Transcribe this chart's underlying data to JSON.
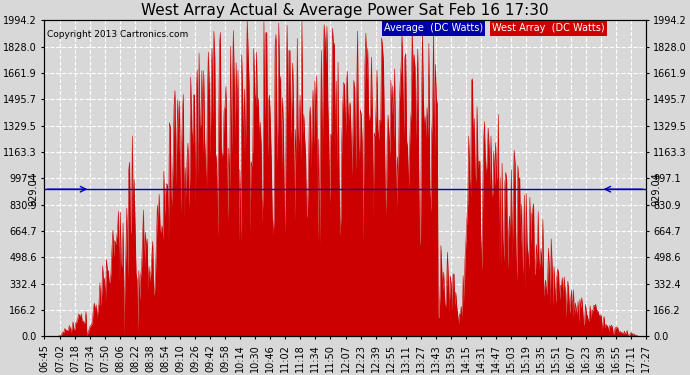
{
  "title": "West Array Actual & Average Power Sat Feb 16 17:30",
  "copyright": "Copyright 2013 Cartronics.com",
  "legend_avg": "Average  (DC Watts)",
  "legend_west": "West Array  (DC Watts)",
  "avg_line_value": 929.04,
  "avg_label": "929.04",
  "ylim": [
    0,
    1994.2
  ],
  "yticks": [
    0.0,
    166.2,
    332.4,
    498.6,
    664.7,
    830.9,
    997.1,
    1163.3,
    1329.5,
    1495.7,
    1661.9,
    1828.0,
    1994.2
  ],
  "ytick_labels": [
    "0.0",
    "166.2",
    "332.4",
    "498.6",
    "664.7",
    "830.9",
    "997.1",
    "1163.3",
    "1329.5",
    "1495.7",
    "1661.9",
    "1828.0",
    "1994.2"
  ],
  "background_color": "#d8d8d8",
  "plot_bg_color": "#d8d8d8",
  "fill_color": "#cc0000",
  "line_color": "#cc0000",
  "avg_line_color": "#0000bb",
  "grid_color": "#ffffff",
  "title_fontsize": 11,
  "tick_fontsize": 7,
  "label_fontsize": 8,
  "xtick_labels": [
    "06:45",
    "07:02",
    "07:18",
    "07:34",
    "07:50",
    "08:06",
    "08:22",
    "08:38",
    "08:54",
    "09:10",
    "09:26",
    "09:42",
    "09:58",
    "10:14",
    "10:30",
    "10:46",
    "11:02",
    "11:18",
    "11:34",
    "11:50",
    "12:07",
    "12:23",
    "12:39",
    "12:55",
    "13:11",
    "13:27",
    "13:43",
    "13:59",
    "14:15",
    "14:31",
    "14:47",
    "15:03",
    "15:19",
    "15:35",
    "15:51",
    "16:07",
    "16:23",
    "16:39",
    "16:55",
    "17:11",
    "17:27"
  ]
}
